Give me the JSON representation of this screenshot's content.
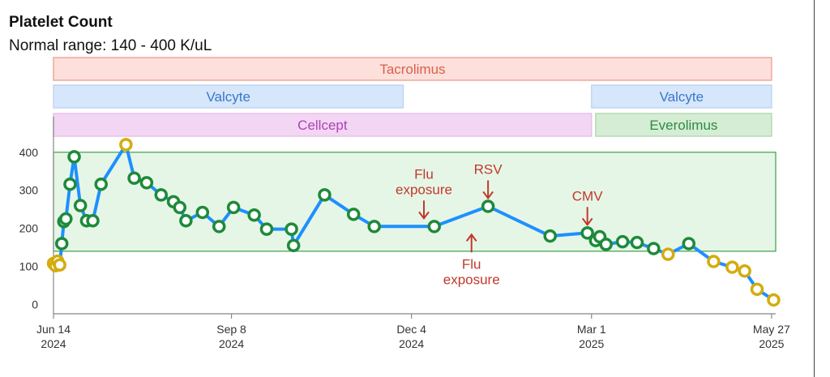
{
  "chart_data": {
    "type": "line",
    "title": "Platelet Count",
    "subtitle": "Normal range: 140 - 400 K/uL",
    "colors": {
      "line": "#1e90ff",
      "normal_marker": "#1e8a3a",
      "abnormal_marker": "#d4ac0d",
      "annotation": "#c0392b"
    },
    "y_ticks": [
      "0",
      "100",
      "200",
      "300",
      "400"
    ],
    "ylim": [
      -20,
      440
    ],
    "x_ticks": [
      {
        "date": "2024-06-14",
        "line1": "Jun 14",
        "line2": "2024"
      },
      {
        "date": "2024-09-08",
        "line1": "Sep 8",
        "line2": "2024"
      },
      {
        "date": "2024-12-04",
        "line1": "Dec 4",
        "line2": "2024"
      },
      {
        "date": "2025-03-01",
        "line1": "Mar 1",
        "line2": "2025"
      },
      {
        "date": "2025-05-27",
        "line1": "May 27",
        "line2": "2025"
      }
    ],
    "xlim": [
      "2024-06-14",
      "2025-05-29"
    ],
    "normal_range": [
      140,
      400
    ],
    "medications": [
      {
        "name": "Tacrolimus",
        "start": "2024-06-14",
        "end": "2025-05-27",
        "row": 0,
        "fill": "#fde0dc",
        "stroke": "#f0a898",
        "text": "#d9604a"
      },
      {
        "name": "Valcyte",
        "start": "2024-06-14",
        "end": "2024-11-30",
        "row": 1,
        "fill": "#d6e6fb",
        "stroke": "#c0d6f2",
        "text": "#3a78c8"
      },
      {
        "name": "Valcyte",
        "start": "2025-03-01",
        "end": "2025-05-27",
        "row": 1,
        "fill": "#d6e6fb",
        "stroke": "#c0d6f2",
        "text": "#3a78c8"
      },
      {
        "name": "Cellcept",
        "start": "2024-06-14",
        "end": "2025-03-01",
        "row": 2,
        "fill": "#f2d6f3",
        "stroke": "#e7c2ea",
        "text": "#b040b8"
      },
      {
        "name": "Everolimus",
        "start": "2025-03-03",
        "end": "2025-05-27",
        "row": 2,
        "fill": "#d4edd4",
        "stroke": "#b5d9b5",
        "text": "#2e8b3e"
      }
    ],
    "series": [
      {
        "points": [
          {
            "date": "2024-06-14",
            "value": 108,
            "abnormal": true
          },
          {
            "date": "2024-06-15",
            "value": 102,
            "abnormal": true
          },
          {
            "date": "2024-06-16",
            "value": 114,
            "abnormal": true
          },
          {
            "date": "2024-06-17",
            "value": 104,
            "abnormal": true
          },
          {
            "date": "2024-06-18",
            "value": 160,
            "abnormal": false
          },
          {
            "date": "2024-06-19",
            "value": 218,
            "abnormal": false
          },
          {
            "date": "2024-06-20",
            "value": 225,
            "abnormal": false
          },
          {
            "date": "2024-06-22",
            "value": 316,
            "abnormal": false
          },
          {
            "date": "2024-06-24",
            "value": 388,
            "abnormal": false
          },
          {
            "date": "2024-06-27",
            "value": 260,
            "abnormal": false
          },
          {
            "date": "2024-06-30",
            "value": 220,
            "abnormal": false
          },
          {
            "date": "2024-07-03",
            "value": 220,
            "abnormal": false
          },
          {
            "date": "2024-07-07",
            "value": 316,
            "abnormal": false
          },
          {
            "date": "2024-07-19",
            "value": 420,
            "abnormal": true
          },
          {
            "date": "2024-07-23",
            "value": 332,
            "abnormal": false
          },
          {
            "date": "2024-07-29",
            "value": 320,
            "abnormal": false
          },
          {
            "date": "2024-08-05",
            "value": 288,
            "abnormal": false
          },
          {
            "date": "2024-08-11",
            "value": 270,
            "abnormal": false
          },
          {
            "date": "2024-08-14",
            "value": 255,
            "abnormal": false
          },
          {
            "date": "2024-08-17",
            "value": 220,
            "abnormal": false
          },
          {
            "date": "2024-08-25",
            "value": 242,
            "abnormal": false
          },
          {
            "date": "2024-09-02",
            "value": 205,
            "abnormal": false
          },
          {
            "date": "2024-09-09",
            "value": 255,
            "abnormal": false
          },
          {
            "date": "2024-09-19",
            "value": 235,
            "abnormal": false
          },
          {
            "date": "2024-09-25",
            "value": 198,
            "abnormal": false
          },
          {
            "date": "2024-10-07",
            "value": 198,
            "abnormal": false
          },
          {
            "date": "2024-10-08",
            "value": 155,
            "abnormal": false
          },
          {
            "date": "2024-10-23",
            "value": 288,
            "abnormal": false
          },
          {
            "date": "2024-11-06",
            "value": 237,
            "abnormal": false
          },
          {
            "date": "2024-11-16",
            "value": 205,
            "abnormal": false
          },
          {
            "date": "2024-12-15",
            "value": 205,
            "abnormal": false
          },
          {
            "date": "2025-01-10",
            "value": 258,
            "abnormal": false
          },
          {
            "date": "2025-02-09",
            "value": 180,
            "abnormal": false
          },
          {
            "date": "2025-02-27",
            "value": 188,
            "abnormal": false
          },
          {
            "date": "2025-03-03",
            "value": 168,
            "abnormal": false
          },
          {
            "date": "2025-03-05",
            "value": 178,
            "abnormal": false
          },
          {
            "date": "2025-03-08",
            "value": 158,
            "abnormal": false
          },
          {
            "date": "2025-03-16",
            "value": 165,
            "abnormal": false
          },
          {
            "date": "2025-03-23",
            "value": 163,
            "abnormal": false
          },
          {
            "date": "2025-03-31",
            "value": 147,
            "abnormal": false
          },
          {
            "date": "2025-04-07",
            "value": 132,
            "abnormal": true
          },
          {
            "date": "2025-04-17",
            "value": 160,
            "abnormal": false
          },
          {
            "date": "2025-04-29",
            "value": 113,
            "abnormal": true
          },
          {
            "date": "2025-05-08",
            "value": 98,
            "abnormal": true
          },
          {
            "date": "2025-05-14",
            "value": 88,
            "abnormal": true
          },
          {
            "date": "2025-05-20",
            "value": 40,
            "abnormal": true
          },
          {
            "date": "2025-05-28",
            "value": 12,
            "abnormal": true
          }
        ]
      }
    ],
    "annotations": [
      {
        "lines": [
          "Flu",
          "exposure"
        ],
        "date": "2024-12-10",
        "value": 205,
        "direction": "down"
      },
      {
        "lines": [
          "Flu",
          "exposure"
        ],
        "date": "2025-01-02",
        "value": 205,
        "direction": "up"
      },
      {
        "lines": [
          "RSV"
        ],
        "date": "2025-01-10",
        "value": 258,
        "direction": "down"
      },
      {
        "lines": [
          "CMV"
        ],
        "date": "2025-02-27",
        "value": 188,
        "direction": "down"
      }
    ]
  }
}
